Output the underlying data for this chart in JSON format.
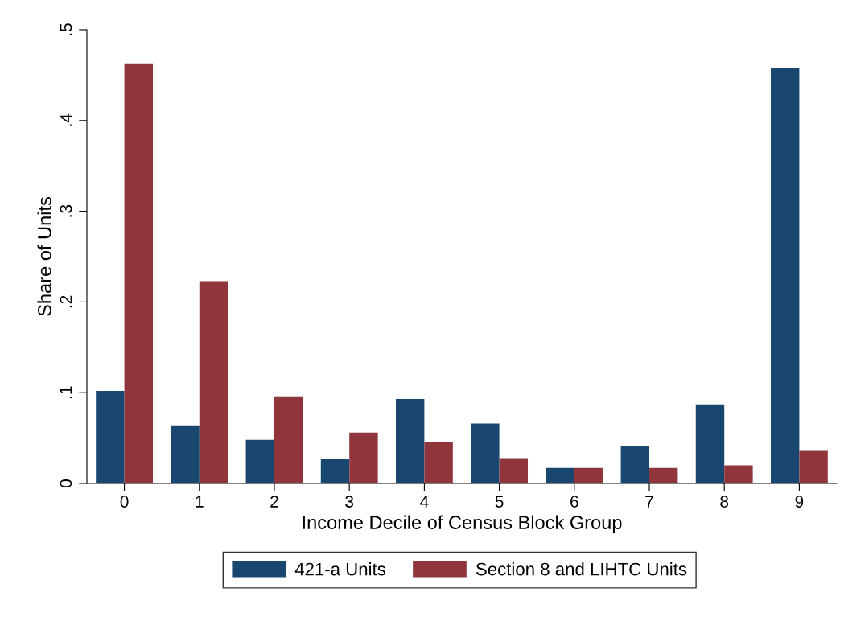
{
  "chart_data": {
    "type": "bar",
    "xlabel": "Income Decile of Census Block Group",
    "ylabel": "Share of Units",
    "categories": [
      "0",
      "1",
      "2",
      "3",
      "4",
      "5",
      "6",
      "7",
      "8",
      "9"
    ],
    "series": [
      {
        "name": "421-a Units",
        "color": "#1a476f",
        "values": [
          0.102,
          0.064,
          0.048,
          0.027,
          0.093,
          0.066,
          0.017,
          0.041,
          0.087,
          0.458
        ]
      },
      {
        "name": "Section 8 and LIHTC Units",
        "color": "#90353b",
        "values": [
          0.463,
          0.223,
          0.096,
          0.056,
          0.046,
          0.028,
          0.017,
          0.017,
          0.02,
          0.036
        ]
      }
    ],
    "ylim": [
      0,
      0.5
    ],
    "yticks": [
      {
        "value": 0,
        "label": "0"
      },
      {
        "value": 0.1,
        "label": ".1"
      },
      {
        "value": 0.2,
        "label": ".2"
      },
      {
        "value": 0.3,
        "label": ".3"
      },
      {
        "value": 0.4,
        "label": ".4"
      },
      {
        "value": 0.5,
        "label": ".5"
      }
    ],
    "grid": false,
    "legend": "bottom"
  }
}
